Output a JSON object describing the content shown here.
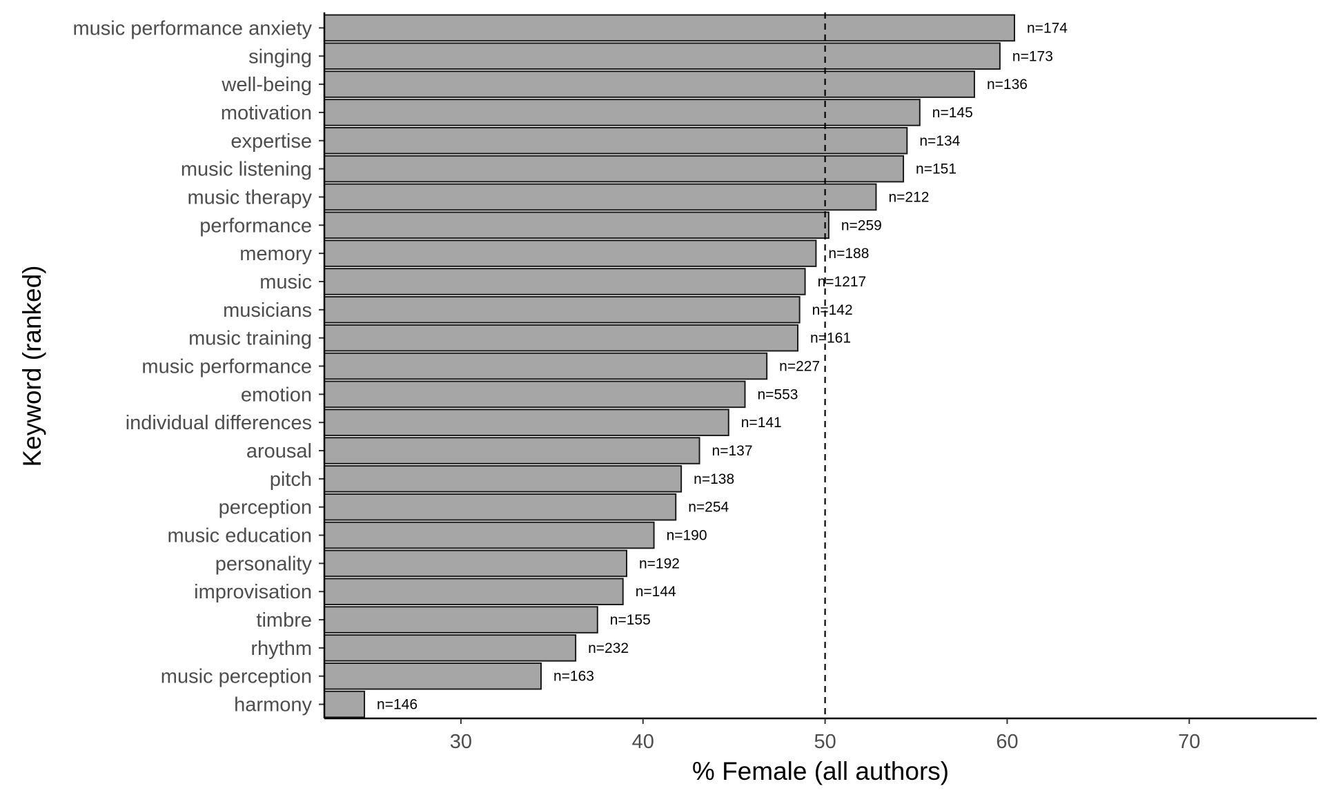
{
  "chart_data": {
    "type": "bar",
    "orientation": "horizontal",
    "title": "",
    "xlabel": "% Female (all authors)",
    "ylabel": "Keyword (ranked)",
    "xlim": [
      22.5,
      77
    ],
    "xticks": [
      30,
      40,
      50,
      60,
      70
    ],
    "reference_line": {
      "x": 50,
      "style": "dashed"
    },
    "grid": false,
    "bar_fill": "#a6a6a6",
    "bar_stroke": "#1a1a1a",
    "categories": [
      "music performance anxiety",
      "singing",
      "well-being",
      "motivation",
      "expertise",
      "music listening",
      "music therapy",
      "performance",
      "memory",
      "music",
      "musicians",
      "music training",
      "music performance",
      "emotion",
      "individual differences",
      "arousal",
      "pitch",
      "perception",
      "music education",
      "personality",
      "improvisation",
      "timbre",
      "rhythm",
      "music perception",
      "harmony"
    ],
    "values": [
      60.4,
      59.6,
      58.2,
      55.2,
      54.5,
      54.3,
      52.8,
      50.2,
      49.5,
      48.9,
      48.6,
      48.5,
      46.8,
      45.6,
      44.7,
      43.1,
      42.1,
      41.8,
      40.6,
      39.1,
      38.9,
      37.5,
      36.3,
      34.4,
      24.7
    ],
    "data_labels": [
      "n=174",
      "n=173",
      "n=136",
      "n=145",
      "n=134",
      "n=151",
      "n=212",
      "n=259",
      "n=188",
      "n=1217",
      "n=142",
      "n=161",
      "n=227",
      "n=553",
      "n=141",
      "n=137",
      "n=138",
      "n=254",
      "n=190",
      "n=192",
      "n=144",
      "n=155",
      "n=232",
      "n=163",
      "n=146"
    ]
  }
}
